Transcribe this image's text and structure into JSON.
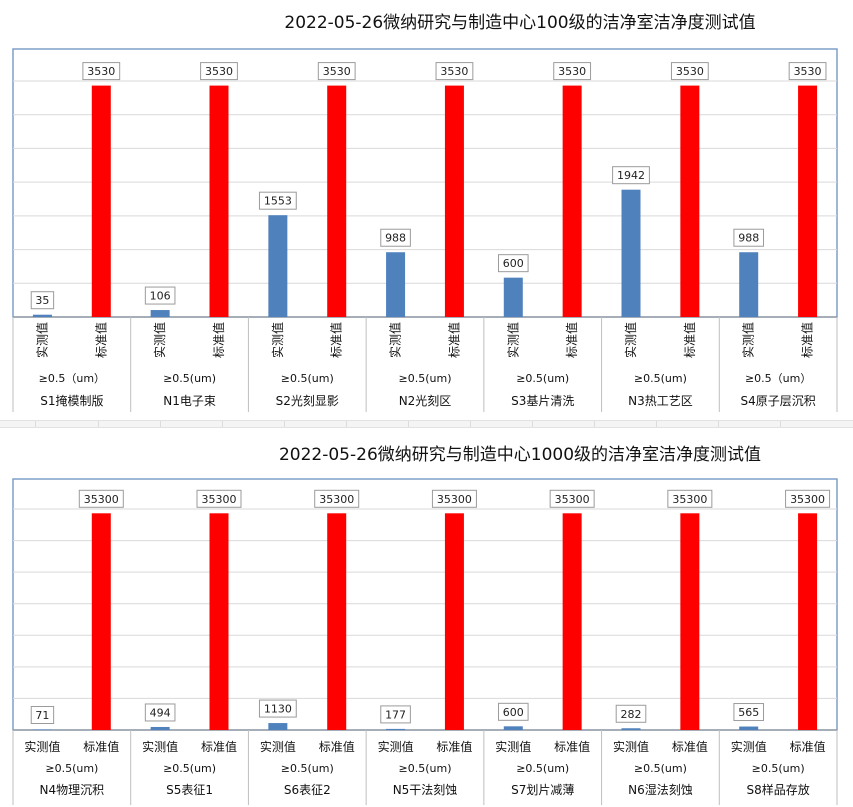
{
  "charts": [
    {
      "title": "2022-05-26微纳研究与制造中心100级的洁净室洁净度测试值",
      "measured_color": "#4f81bd",
      "standard_color": "#ff0000",
      "vertical_labels": true
    },
    {
      "title": "2022-05-26微纳研究与制造中心1000级的洁净室洁净度测试值",
      "measured_color": "#4f81bd",
      "standard_color": "#ff0000",
      "vertical_labels": false
    }
  ],
  "chart_data": [
    {
      "type": "bar",
      "title": "2022-05-26微纳研究与制造中心100级的洁净室洁净度测试值",
      "series_labels": [
        "实测值",
        "标准值"
      ],
      "ylim": [
        0,
        3600
      ],
      "grid": true,
      "groups": [
        {
          "room": "S1掩模制版",
          "size": "≥0.5（um）",
          "measured": 35,
          "standard": 3530
        },
        {
          "room": "N1电子束",
          "size": "≥0.5(um)",
          "measured": 106,
          "standard": 3530
        },
        {
          "room": "S2光刻显影",
          "size": "≥0.5(um)",
          "measured": 1553,
          "standard": 3530
        },
        {
          "room": "N2光刻区",
          "size": "≥0.5(um)",
          "measured": 988,
          "standard": 3530
        },
        {
          "room": "S3基片清洗",
          "size": "≥0.5(um)",
          "measured": 600,
          "standard": 3530
        },
        {
          "room": "N3热工艺区",
          "size": "≥0.5(um)",
          "measured": 1942,
          "standard": 3530
        },
        {
          "room": "S4原子层沉积",
          "size": "≥0.5（um）",
          "measured": 988,
          "standard": 3530
        }
      ]
    },
    {
      "type": "bar",
      "title": "2022-05-26微纳研究与制造中心1000级的洁净室洁净度测试值",
      "series_labels": [
        "实测值",
        "标准值"
      ],
      "ylim": [
        0,
        36000
      ],
      "grid": true,
      "groups": [
        {
          "room": "N4物理沉积",
          "size": "≥0.5(um)",
          "measured": 71,
          "standard": 35300
        },
        {
          "room": "S5表征1",
          "size": "≥0.5(um)",
          "measured": 494,
          "standard": 35300
        },
        {
          "room": "S6表征2",
          "size": "≥0.5(um)",
          "measured": 1130,
          "standard": 35300
        },
        {
          "room": "N5干法刻蚀",
          "size": "≥0.5(um)",
          "measured": 177,
          "standard": 35300
        },
        {
          "room": "S7划片减薄",
          "size": "≥0.5(um)",
          "measured": 600,
          "standard": 35300
        },
        {
          "room": "N6湿法刻蚀",
          "size": "≥0.5(um)",
          "measured": 282,
          "standard": 35300
        },
        {
          "room": "S8样品存放",
          "size": "≥0.5(um)",
          "measured": 565,
          "standard": 35300
        }
      ]
    }
  ]
}
